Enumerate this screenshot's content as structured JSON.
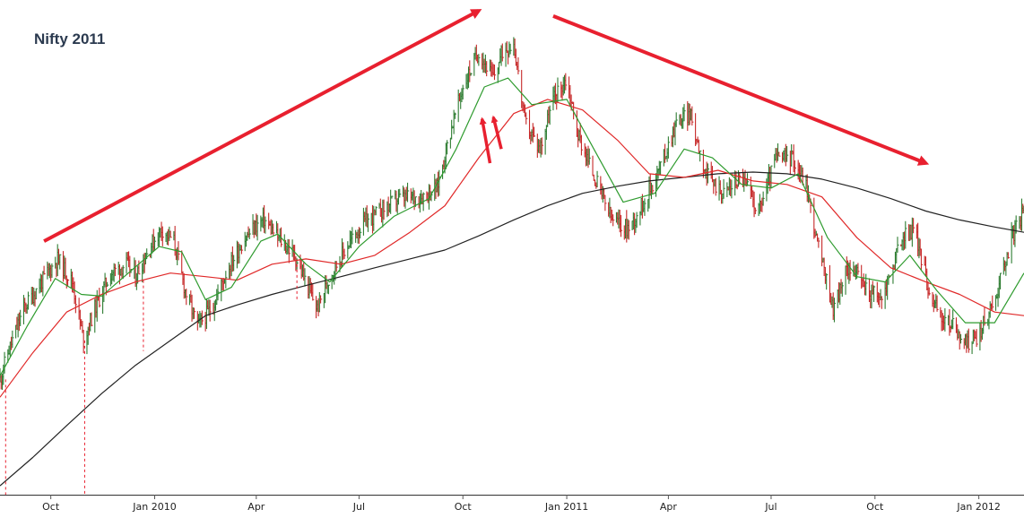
{
  "chart_data": {
    "type": "line",
    "title": "Nifty 2011",
    "xlabel": "",
    "ylabel": "",
    "x_range": [
      "2009-08-17",
      "2012-02-10"
    ],
    "y_range": [
      3750,
      6500
    ],
    "grid": false,
    "legend": "none",
    "x_tick_labels": [
      {
        "date": "2009-10-01",
        "label": "Oct"
      },
      {
        "date": "2010-01-01",
        "label": "Jan 2010"
      },
      {
        "date": "2010-04-01",
        "label": "Apr"
      },
      {
        "date": "2010-07-01",
        "label": "Jul"
      },
      {
        "date": "2010-10-01",
        "label": "Oct"
      },
      {
        "date": "2011-01-01",
        "label": "Jan 2011"
      },
      {
        "date": "2011-04-01",
        "label": "Apr"
      },
      {
        "date": "2011-07-01",
        "label": "Jul"
      },
      {
        "date": "2011-10-01",
        "label": "Oct"
      },
      {
        "date": "2012-01-01",
        "label": "Jan 2012"
      }
    ],
    "price_path": [
      [
        "2009-08-17",
        4400
      ],
      [
        "2009-08-24",
        4550
      ],
      [
        "2009-09-07",
        4800
      ],
      [
        "2009-09-28",
        5000
      ],
      [
        "2009-10-07",
        5080
      ],
      [
        "2009-10-20",
        4950
      ],
      [
        "2009-10-30",
        4620
      ],
      [
        "2009-11-09",
        4800
      ],
      [
        "2009-11-23",
        5000
      ],
      [
        "2009-12-07",
        5050
      ],
      [
        "2009-12-15",
        4980
      ],
      [
        "2009-12-28",
        5150
      ],
      [
        "2010-01-07",
        5250
      ],
      [
        "2010-01-18",
        5180
      ],
      [
        "2010-01-28",
        4900
      ],
      [
        "2010-02-08",
        4700
      ],
      [
        "2010-02-22",
        4820
      ],
      [
        "2010-03-05",
        5000
      ],
      [
        "2010-03-20",
        5180
      ],
      [
        "2010-04-01",
        5270
      ],
      [
        "2010-04-08",
        5300
      ],
      [
        "2010-04-20",
        5200
      ],
      [
        "2010-05-05",
        5100
      ],
      [
        "2010-05-18",
        4900
      ],
      [
        "2010-05-25",
        4800
      ],
      [
        "2010-06-05",
        4980
      ],
      [
        "2010-06-20",
        5150
      ],
      [
        "2010-07-05",
        5280
      ],
      [
        "2010-07-20",
        5350
      ],
      [
        "2010-08-05",
        5420
      ],
      [
        "2010-08-25",
        5430
      ],
      [
        "2010-09-08",
        5480
      ],
      [
        "2010-09-20",
        5800
      ],
      [
        "2010-10-01",
        6050
      ],
      [
        "2010-10-15",
        6250
      ],
      [
        "2010-10-28",
        6100
      ],
      [
        "2010-11-05",
        6250
      ],
      [
        "2010-11-15",
        6300
      ],
      [
        "2010-11-25",
        5850
      ],
      [
        "2010-12-08",
        5700
      ],
      [
        "2010-12-20",
        5980
      ],
      [
        "2011-01-01",
        6100
      ],
      [
        "2011-01-10",
        5800
      ],
      [
        "2011-01-25",
        5550
      ],
      [
        "2011-02-10",
        5300
      ],
      [
        "2011-02-25",
        5250
      ],
      [
        "2011-03-10",
        5400
      ],
      [
        "2011-03-25",
        5600
      ],
      [
        "2011-04-08",
        5850
      ],
      [
        "2011-04-20",
        5900
      ],
      [
        "2011-05-05",
        5550
      ],
      [
        "2011-05-20",
        5450
      ],
      [
        "2011-06-05",
        5550
      ],
      [
        "2011-06-20",
        5350
      ],
      [
        "2011-07-05",
        5650
      ],
      [
        "2011-07-20",
        5650
      ],
      [
        "2011-08-01",
        5500
      ],
      [
        "2011-08-10",
        5200
      ],
      [
        "2011-08-25",
        4800
      ],
      [
        "2011-09-08",
        5050
      ],
      [
        "2011-09-25",
        4900
      ],
      [
        "2011-10-07",
        4850
      ],
      [
        "2011-10-25",
        5200
      ],
      [
        "2011-11-05",
        5250
      ],
      [
        "2011-11-18",
        4900
      ],
      [
        "2011-11-28",
        4750
      ],
      [
        "2011-12-10",
        4700
      ],
      [
        "2011-12-20",
        4600
      ],
      [
        "2012-01-01",
        4650
      ],
      [
        "2012-01-15",
        4850
      ],
      [
        "2012-01-30",
        5200
      ],
      [
        "2012-02-10",
        5350
      ]
    ],
    "ma_short_path": [
      [
        "2009-08-17",
        4420
      ],
      [
        "2009-09-10",
        4700
      ],
      [
        "2009-10-05",
        4970
      ],
      [
        "2009-10-28",
        4880
      ],
      [
        "2009-11-15",
        4870
      ],
      [
        "2009-12-05",
        4980
      ],
      [
        "2010-01-05",
        5150
      ],
      [
        "2010-01-25",
        5120
      ],
      [
        "2010-02-15",
        4850
      ],
      [
        "2010-03-10",
        4920
      ],
      [
        "2010-04-05",
        5180
      ],
      [
        "2010-04-20",
        5220
      ],
      [
        "2010-05-15",
        5050
      ],
      [
        "2010-06-05",
        4950
      ],
      [
        "2010-07-01",
        5150
      ],
      [
        "2010-08-01",
        5320
      ],
      [
        "2010-09-01",
        5420
      ],
      [
        "2010-09-25",
        5700
      ],
      [
        "2010-10-20",
        6050
      ],
      [
        "2010-11-10",
        6100
      ],
      [
        "2010-12-01",
        5950
      ],
      [
        "2011-01-01",
        5980
      ],
      [
        "2011-01-25",
        5700
      ],
      [
        "2011-02-20",
        5400
      ],
      [
        "2011-03-20",
        5450
      ],
      [
        "2011-04-15",
        5700
      ],
      [
        "2011-05-10",
        5650
      ],
      [
        "2011-06-05",
        5500
      ],
      [
        "2011-07-01",
        5480
      ],
      [
        "2011-07-25",
        5560
      ],
      [
        "2011-08-20",
        5200
      ],
      [
        "2011-09-15",
        4980
      ],
      [
        "2011-10-10",
        4950
      ],
      [
        "2011-11-01",
        5100
      ],
      [
        "2011-11-25",
        4900
      ],
      [
        "2011-12-20",
        4720
      ],
      [
        "2012-01-15",
        4720
      ],
      [
        "2012-02-10",
        5000
      ]
    ],
    "ma_medium_path": [
      [
        "2009-08-17",
        4300
      ],
      [
        "2009-09-15",
        4550
      ],
      [
        "2009-10-15",
        4780
      ],
      [
        "2009-11-15",
        4880
      ],
      [
        "2009-12-15",
        4950
      ],
      [
        "2010-01-15",
        5000
      ],
      [
        "2010-02-15",
        4980
      ],
      [
        "2010-03-15",
        4960
      ],
      [
        "2010-04-15",
        5050
      ],
      [
        "2010-05-15",
        5080
      ],
      [
        "2010-06-15",
        5050
      ],
      [
        "2010-07-15",
        5100
      ],
      [
        "2010-08-15",
        5230
      ],
      [
        "2010-09-15",
        5380
      ],
      [
        "2010-10-15",
        5650
      ],
      [
        "2010-11-15",
        5900
      ],
      [
        "2010-12-15",
        5980
      ],
      [
        "2011-01-15",
        5920
      ],
      [
        "2011-02-15",
        5750
      ],
      [
        "2011-03-15",
        5560
      ],
      [
        "2011-04-15",
        5540
      ],
      [
        "2011-05-15",
        5580
      ],
      [
        "2011-06-15",
        5520
      ],
      [
        "2011-07-15",
        5500
      ],
      [
        "2011-08-15",
        5430
      ],
      [
        "2011-09-15",
        5200
      ],
      [
        "2011-10-15",
        5030
      ],
      [
        "2011-11-15",
        4950
      ],
      [
        "2011-12-15",
        4880
      ],
      [
        "2012-01-15",
        4780
      ],
      [
        "2012-02-10",
        4760
      ]
    ],
    "ma_long_path": [
      [
        "2009-08-17",
        3800
      ],
      [
        "2009-09-15",
        3960
      ],
      [
        "2009-10-15",
        4140
      ],
      [
        "2009-11-15",
        4320
      ],
      [
        "2009-12-15",
        4480
      ],
      [
        "2010-01-15",
        4620
      ],
      [
        "2010-02-15",
        4760
      ],
      [
        "2010-03-15",
        4820
      ],
      [
        "2010-04-15",
        4880
      ],
      [
        "2010-05-15",
        4930
      ],
      [
        "2010-06-15",
        4980
      ],
      [
        "2010-07-15",
        5030
      ],
      [
        "2010-08-15",
        5080
      ],
      [
        "2010-09-15",
        5130
      ],
      [
        "2010-10-15",
        5210
      ],
      [
        "2010-11-15",
        5300
      ],
      [
        "2010-12-15",
        5380
      ],
      [
        "2011-01-15",
        5450
      ],
      [
        "2011-02-15",
        5490
      ],
      [
        "2011-03-15",
        5520
      ],
      [
        "2011-04-15",
        5540
      ],
      [
        "2011-05-15",
        5560
      ],
      [
        "2011-06-15",
        5570
      ],
      [
        "2011-07-15",
        5560
      ],
      [
        "2011-08-15",
        5530
      ],
      [
        "2011-09-15",
        5480
      ],
      [
        "2011-10-15",
        5420
      ],
      [
        "2011-11-15",
        5350
      ],
      [
        "2011-12-15",
        5300
      ],
      [
        "2012-01-15",
        5260
      ],
      [
        "2012-02-10",
        5230
      ]
    ],
    "trend_arrows": [
      {
        "from": [
          "2009-09-25",
          5180
        ],
        "to": [
          "2010-10-15",
          6480
        ]
      },
      {
        "from": [
          "2010-12-20",
          6450
        ],
        "to": [
          "2011-11-15",
          5620
        ]
      }
    ],
    "marker_arrows": [
      {
        "from": [
          "2010-10-25",
          5620
        ],
        "to": [
          "2010-10-18",
          5870
        ]
      },
      {
        "from": [
          "2010-11-04",
          5700
        ],
        "to": [
          "2010-10-28",
          5880
        ]
      }
    ],
    "vertical_markers": [
      {
        "date": "2009-08-22",
        "from": 4400,
        "to": 3750
      },
      {
        "date": "2009-10-31",
        "from": 4620,
        "to": 3750
      },
      {
        "date": "2009-12-22",
        "from": 4960,
        "to": 4560
      },
      {
        "date": "2010-05-07",
        "from": 5050,
        "to": 4850
      }
    ],
    "colors": {
      "price_up": "#2e7d32",
      "price_down": "#c62828",
      "ma_short": "#2e9b2e",
      "ma_medium": "#e02828",
      "ma_long": "#222222",
      "annotation": "#e8202f",
      "title": "#2b3a4f"
    }
  }
}
